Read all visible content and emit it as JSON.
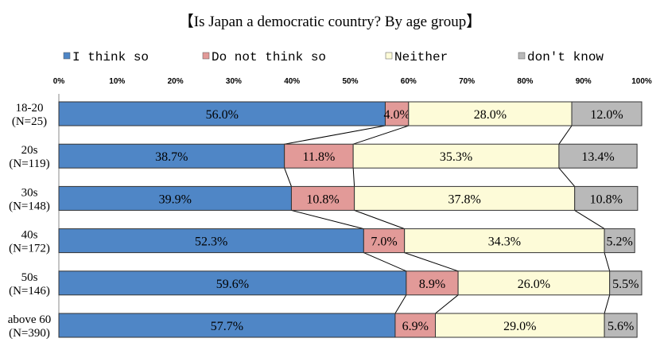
{
  "chart_data": {
    "type": "bar",
    "orientation": "horizontal",
    "stacked": "percent",
    "title": "【Is Japan a democratic country? By age group】",
    "xlim": [
      0,
      100
    ],
    "xticks": [
      "0%",
      "10%",
      "20%",
      "30%",
      "40%",
      "50%",
      "60%",
      "70%",
      "80%",
      "90%",
      "100%"
    ],
    "categories": [
      [
        "18-20",
        "(N=25)"
      ],
      [
        "20s",
        "(N=119)"
      ],
      [
        "30s",
        "(N=148)"
      ],
      [
        "40s",
        "(N=172)"
      ],
      [
        "50s",
        "(N=146)"
      ],
      [
        "above 60",
        "(N=390)"
      ]
    ],
    "series": [
      {
        "name": "I think so",
        "color": "#4f86c6",
        "values": [
          56.0,
          38.7,
          39.9,
          52.3,
          59.6,
          57.7
        ],
        "labels": [
          "56.0%",
          "38.7%",
          "39.9%",
          "52.3%",
          "59.6%",
          "57.7%"
        ]
      },
      {
        "name": "Do not think so",
        "color": "#e29a98",
        "values": [
          4.0,
          11.8,
          10.8,
          7.0,
          8.9,
          6.9
        ],
        "labels": [
          "4.0%",
          "11.8%",
          "10.8%",
          "7.0%",
          "8.9%",
          "6.9%"
        ]
      },
      {
        "name": "Neither",
        "color": "#fdfbd8",
        "values": [
          28.0,
          35.3,
          37.8,
          34.3,
          26.0,
          29.0
        ],
        "labels": [
          "28.0%",
          "35.3%",
          "37.8%",
          "34.3%",
          "26.0%",
          "29.0%"
        ]
      },
      {
        "name": "don't know",
        "color": "#b9b9b9",
        "values": [
          12.0,
          13.4,
          10.8,
          5.2,
          5.5,
          5.6
        ],
        "labels": [
          "12.0%",
          "13.4%",
          "10.8%",
          "5.2%",
          "5.5%",
          "5.6%"
        ]
      }
    ],
    "series_lines": true,
    "legend": "top"
  }
}
